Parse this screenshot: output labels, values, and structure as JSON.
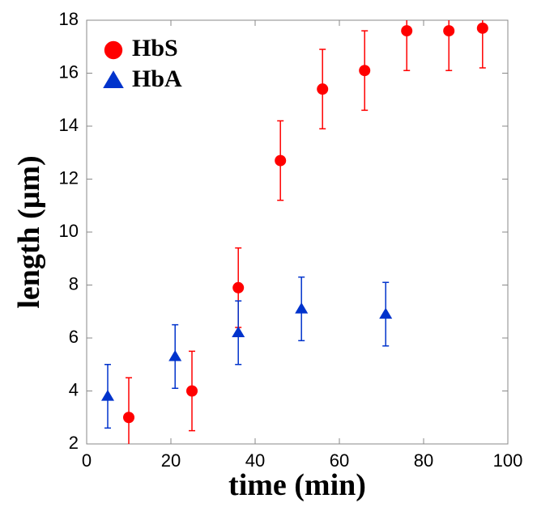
{
  "chart_data": {
    "type": "scatter",
    "x_label": "time (min)",
    "y_label": "length (μm)",
    "xlim": [
      0,
      100
    ],
    "xticks": [
      0,
      20,
      40,
      60,
      80,
      100
    ],
    "ylim": [
      2,
      18
    ],
    "yticks": [
      2,
      4,
      6,
      8,
      10,
      12,
      14,
      16,
      18
    ],
    "grid": false,
    "legend": "upper left",
    "series": [
      {
        "name": "HbS",
        "color": "#ff0000",
        "marker": "circle",
        "x": [
          10,
          25,
          36,
          46,
          56,
          66,
          76,
          86,
          94
        ],
        "values": [
          3.0,
          4.0,
          7.9,
          12.7,
          15.4,
          16.1,
          17.6,
          17.6,
          17.7
        ],
        "errors": [
          1.5,
          1.5,
          1.5,
          1.5,
          1.5,
          1.5,
          1.5,
          1.5,
          1.5
        ]
      },
      {
        "name": "HbA",
        "color": "#0033cc",
        "marker": "triangle",
        "x": [
          5,
          21,
          36,
          51,
          71
        ],
        "values": [
          3.8,
          5.3,
          6.2,
          7.1,
          6.9
        ],
        "errors": [
          1.2,
          1.2,
          1.2,
          1.2,
          1.2
        ]
      }
    ]
  }
}
